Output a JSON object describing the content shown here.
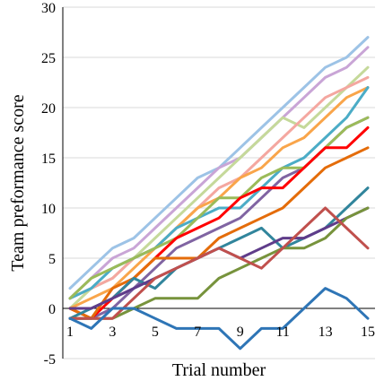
{
  "chart_data": {
    "type": "line",
    "title": "",
    "xlabel": "Trial number",
    "ylabel": "Team preformance score",
    "x": [
      1,
      2,
      3,
      4,
      5,
      6,
      7,
      8,
      9,
      10,
      11,
      12,
      13,
      14,
      15
    ],
    "xticks": [
      "1",
      "3",
      "5",
      "7",
      "9",
      "11",
      "13",
      "15"
    ],
    "yticks": [
      "-5",
      "0",
      "5",
      "10",
      "15",
      "20",
      "25",
      "30"
    ],
    "ylim": [
      -5,
      30
    ],
    "grid": "horizontal",
    "legend": "none",
    "series": [
      {
        "color": "#9dc3e6",
        "values": [
          2,
          4,
          6,
          7,
          9,
          11,
          13,
          14,
          16,
          18,
          20,
          22,
          24,
          25,
          27
        ]
      },
      {
        "color": "#c9a5d6",
        "values": [
          1,
          3,
          5,
          6,
          8,
          10,
          12,
          14,
          15,
          17,
          19,
          21,
          23,
          24,
          26
        ]
      },
      {
        "color": "#c5d99a",
        "values": [
          0,
          2,
          3,
          5,
          7,
          9,
          11,
          13,
          15,
          17,
          19,
          18,
          20,
          22,
          24
        ]
      },
      {
        "color": "#f4a7a0",
        "values": [
          1,
          2,
          3,
          5,
          6,
          8,
          10,
          12,
          13,
          15,
          17,
          19,
          21,
          22,
          23
        ]
      },
      {
        "color": "#f9a54a",
        "values": [
          0,
          1,
          2,
          4,
          6,
          8,
          10,
          11,
          13,
          14,
          16,
          17,
          19,
          21,
          22
        ]
      },
      {
        "color": "#4bacc6",
        "values": [
          1,
          2,
          4,
          5,
          6,
          8,
          9,
          10,
          10,
          12,
          14,
          15,
          17,
          19,
          22
        ]
      },
      {
        "color": "#8064a2",
        "values": [
          -1,
          -1,
          0,
          2,
          4,
          6,
          7,
          8,
          9,
          11,
          13,
          14,
          16,
          18,
          19
        ]
      },
      {
        "color": "#9bbb59",
        "values": [
          1,
          3,
          4,
          5,
          6,
          7,
          9,
          11,
          11,
          13,
          14,
          14,
          16,
          18,
          19
        ]
      },
      {
        "color": "#ff0000",
        "values": [
          0,
          -1,
          1,
          3,
          5,
          7,
          8,
          9,
          11,
          12,
          12,
          14,
          16,
          16,
          18
        ]
      },
      {
        "color": "#e46c0a",
        "values": [
          0,
          -1,
          2,
          3,
          5,
          5,
          5,
          7,
          8,
          9,
          10,
          12,
          14,
          15,
          16
        ]
      },
      {
        "color": "#31859c",
        "values": [
          -1,
          0,
          1,
          3,
          2,
          4,
          5,
          6,
          7,
          8,
          6,
          7,
          8,
          10,
          12
        ]
      },
      {
        "color": "#5f3c8a",
        "values": [
          0,
          0,
          1,
          2,
          3,
          4,
          5,
          6,
          5,
          6,
          7,
          7,
          8,
          9,
          10
        ]
      },
      {
        "color": "#77933c",
        "values": [
          -1,
          -1,
          -1,
          0,
          1,
          1,
          1,
          3,
          4,
          5,
          6,
          6,
          7,
          9,
          10
        ]
      },
      {
        "color": "#c0504d",
        "values": [
          -1,
          -1,
          -1,
          1,
          3,
          4,
          5,
          6,
          5,
          4,
          6,
          8,
          10,
          8,
          6
        ]
      },
      {
        "color": "#2e75b6",
        "values": [
          -1,
          -2,
          0,
          0,
          -1,
          -2,
          -2,
          -2,
          -4,
          -2,
          -2,
          0,
          2,
          1,
          -1
        ]
      }
    ]
  }
}
